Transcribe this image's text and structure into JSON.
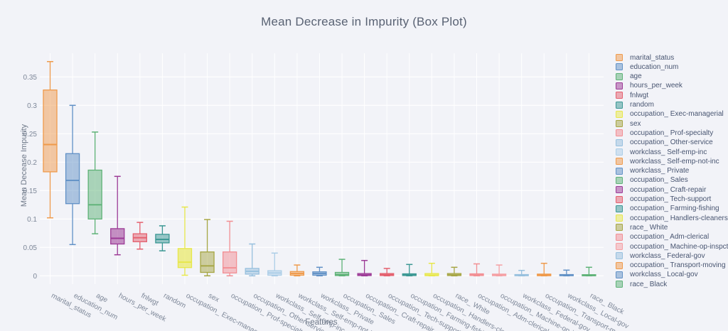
{
  "chart_data": {
    "type": "box",
    "title": "Mean Decrease in Impurity (Box Plot)",
    "xlabel": "Features",
    "ylabel": "Mean Decease Impurity",
    "ylim": [
      -0.012,
      0.395
    ],
    "ytick_values": [
      0,
      0.05,
      0.1,
      0.15,
      0.2,
      0.25,
      0.3,
      0.35
    ],
    "ytick_labels": [
      "0",
      "0.05",
      "0.1",
      "0.15",
      "0.2",
      "0.25",
      "0.3",
      "0.35"
    ],
    "grid": true,
    "legend_position": "right",
    "orientation": "vertical",
    "series": [
      {
        "name": "marital_status",
        "color": "#ef9a4b",
        "fill_opacity": 0.5,
        "low": 0.102,
        "q1": 0.183,
        "median": 0.231,
        "q3": 0.327,
        "high": 0.377
      },
      {
        "name": "education_num",
        "color": "#6191c6",
        "fill_opacity": 0.5,
        "low": 0.055,
        "q1": 0.127,
        "median": 0.168,
        "q3": 0.215,
        "high": 0.3
      },
      {
        "name": "age",
        "color": "#5eb277",
        "fill_opacity": 0.5,
        "low": 0.074,
        "q1": 0.1,
        "median": 0.125,
        "q3": 0.186,
        "high": 0.253
      },
      {
        "name": "hours_per_week",
        "color": "#9c3a96",
        "fill_opacity": 0.55,
        "low": 0.037,
        "q1": 0.056,
        "median": 0.066,
        "q3": 0.083,
        "high": 0.175
      },
      {
        "name": "fnlwgt",
        "color": "#e4606e",
        "fill_opacity": 0.5,
        "low": 0.047,
        "q1": 0.06,
        "median": 0.067,
        "q3": 0.074,
        "high": 0.094
      },
      {
        "name": "random",
        "color": "#3a9793",
        "fill_opacity": 0.5,
        "low": 0.044,
        "q1": 0.058,
        "median": 0.064,
        "q3": 0.073,
        "high": 0.088
      },
      {
        "name": "occupation_ Exec-managerial",
        "color": "#e7e74a",
        "fill_opacity": 0.6,
        "low": 0.001,
        "q1": 0.0145,
        "median": 0.024,
        "q3": 0.048,
        "high": 0.121
      },
      {
        "name": "sex",
        "color": "#a6a644",
        "fill_opacity": 0.5,
        "low": 0.0,
        "q1": 0.006,
        "median": 0.0175,
        "q3": 0.042,
        "high": 0.099
      },
      {
        "name": "occupation_ Prof-specialty",
        "color": "#f28e93",
        "fill_opacity": 0.5,
        "low": 0.0,
        "q1": 0.005,
        "median": 0.014,
        "q3": 0.042,
        "high": 0.096
      },
      {
        "name": "occupation_ Other-service",
        "color": "#97c0de",
        "fill_opacity": 0.5,
        "low": 0.0,
        "q1": 0.003,
        "median": 0.008,
        "q3": 0.013,
        "high": 0.056
      },
      {
        "name": "workclass_ Self-emp-inc",
        "color": "#abcde7",
        "fill_opacity": 0.5,
        "low": 0.0,
        "q1": 0.001,
        "median": 0.005,
        "q3": 0.009,
        "high": 0.04
      },
      {
        "name": "workclass_ Self-emp-not-inc",
        "color": "#ef9a4b",
        "fill_opacity": 0.5,
        "low": 0.0,
        "q1": 0.001,
        "median": 0.004,
        "q3": 0.0075,
        "high": 0.019
      },
      {
        "name": "workclass_ Private",
        "color": "#6191c6",
        "fill_opacity": 0.5,
        "low": 0.0,
        "q1": 0.001,
        "median": 0.004,
        "q3": 0.007,
        "high": 0.015
      },
      {
        "name": "occupation_ Sales",
        "color": "#5eb277",
        "fill_opacity": 0.5,
        "low": 0.0,
        "q1": 0.0005,
        "median": 0.002,
        "q3": 0.006,
        "high": 0.029
      },
      {
        "name": "occupation_ Craft-repair",
        "color": "#9c3a96",
        "fill_opacity": 0.55,
        "low": 0.0,
        "q1": 0.0005,
        "median": 0.0015,
        "q3": 0.004,
        "high": 0.027
      },
      {
        "name": "occupation_ Tech-support",
        "color": "#e4606e",
        "fill_opacity": 0.5,
        "low": 0.0,
        "q1": 0.0005,
        "median": 0.002,
        "q3": 0.004,
        "high": 0.013
      },
      {
        "name": "occupation_ Farming-fishing",
        "color": "#3a9793",
        "fill_opacity": 0.5,
        "low": 0.0,
        "q1": 0.0005,
        "median": 0.0015,
        "q3": 0.0035,
        "high": 0.02
      },
      {
        "name": "occupation_ Handlers-cleaners",
        "color": "#e7e74a",
        "fill_opacity": 0.6,
        "low": 0.0,
        "q1": 0.0003,
        "median": 0.001,
        "q3": 0.004,
        "high": 0.022
      },
      {
        "name": "race_ White",
        "color": "#a6a644",
        "fill_opacity": 0.5,
        "low": 0.0,
        "q1": 0.0005,
        "median": 0.0015,
        "q3": 0.004,
        "high": 0.015
      },
      {
        "name": "occupation_ Adm-clerical",
        "color": "#f28e93",
        "fill_opacity": 0.5,
        "low": 0.0,
        "q1": 0.0005,
        "median": 0.0015,
        "q3": 0.0035,
        "high": 0.021
      },
      {
        "name": "occupation_ Machine-op-inspct",
        "color": "#f5a0a4",
        "fill_opacity": 0.5,
        "low": 0.0,
        "q1": 0.0003,
        "median": 0.0013,
        "q3": 0.003,
        "high": 0.019
      },
      {
        "name": "workclass_ Federal-gov",
        "color": "#97c0de",
        "fill_opacity": 0.5,
        "low": 0.0,
        "q1": 0.0002,
        "median": 0.001,
        "q3": 0.0022,
        "high": 0.0095
      },
      {
        "name": "occupation_ Transport-moving",
        "color": "#ef9a4b",
        "fill_opacity": 0.5,
        "low": 0.0,
        "q1": 0.0002,
        "median": 0.0012,
        "q3": 0.003,
        "high": 0.022
      },
      {
        "name": "workclass_ Local-gov",
        "color": "#6191c6",
        "fill_opacity": 0.5,
        "low": 0.0,
        "q1": 0.0002,
        "median": 0.001,
        "q3": 0.0022,
        "high": 0.01
      },
      {
        "name": "race_ Black",
        "color": "#5eb277",
        "fill_opacity": 0.5,
        "low": 0.0,
        "q1": 0.0001,
        "median": 0.0008,
        "q3": 0.002,
        "high": 0.015
      }
    ]
  },
  "style": {
    "background": "#f2f3f8",
    "gridline_color": "#ffffff",
    "title_color": "#596273",
    "axis_title_color": "#6e7888",
    "tick_label_color": "#7d8798",
    "legend_text_color": "#485571"
  }
}
